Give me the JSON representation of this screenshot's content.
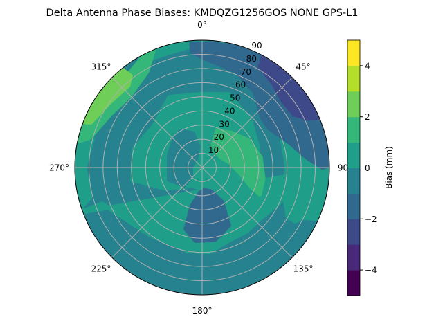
{
  "chart_data": {
    "type": "polar-contour",
    "title": "Delta Antenna Phase Biases: KMDQZG1256GOS   NONE GPS-L1",
    "theta_direction": "clockwise",
    "theta_zero": "top",
    "theta_ticks": [
      "0°",
      "45°",
      "90°",
      "135°",
      "180°",
      "225°",
      "270°",
      "315°"
    ],
    "r_ticks": [
      "10",
      "20",
      "30",
      "40",
      "50",
      "60",
      "70",
      "80",
      "90"
    ],
    "r_range": [
      0,
      90
    ],
    "grid": true,
    "colorbar": {
      "label": "Bias (mm)",
      "range": [
        -5,
        5
      ],
      "ticks": [
        "4",
        "2",
        "0",
        "−2",
        "−4"
      ],
      "levels": [
        -5,
        -4,
        -3,
        -2,
        -1,
        0,
        1,
        2,
        3,
        4,
        5
      ],
      "colors": [
        "#440154",
        "#482878",
        "#3e4989",
        "#31688e",
        "#26828e",
        "#1f9e89",
        "#35b779",
        "#6ece58",
        "#b5de2b",
        "#fde725"
      ],
      "colormap": "viridis"
    },
    "background_level": [
      -1,
      0
    ],
    "regions": [
      {
        "level": [
          0,
          1
        ],
        "points": [
          [
            0,
            52
          ],
          [
            20,
            55
          ],
          [
            45,
            48
          ],
          [
            70,
            42
          ],
          [
            90,
            35
          ],
          [
            110,
            40
          ],
          [
            130,
            30
          ],
          [
            150,
            25
          ],
          [
            180,
            15
          ],
          [
            210,
            15
          ],
          [
            240,
            30
          ],
          [
            260,
            50
          ],
          [
            285,
            50
          ],
          [
            310,
            45
          ],
          [
            335,
            55
          ]
        ]
      },
      {
        "level": [
          0,
          1
        ],
        "points": [
          [
            250,
            90
          ],
          [
            250,
            75
          ],
          [
            235,
            65
          ],
          [
            215,
            60
          ],
          [
            200,
            58
          ],
          [
            190,
            60
          ],
          [
            175,
            60
          ],
          [
            160,
            55
          ],
          [
            145,
            55
          ],
          [
            130,
            55
          ],
          [
            115,
            60
          ],
          [
            100,
            65
          ],
          [
            90,
            70
          ],
          [
            90,
            90
          ]
        ]
      },
      {
        "level": [
          0,
          1
        ],
        "points": [
          [
            45,
            70
          ],
          [
            55,
            65
          ],
          [
            70,
            60
          ],
          [
            90,
            60
          ],
          [
            110,
            62
          ],
          [
            120,
            70
          ],
          [
            120,
            90
          ],
          [
            75,
            90
          ],
          [
            75,
            80
          ],
          [
            60,
            75
          ]
        ]
      },
      {
        "level": [
          0,
          1
        ],
        "points": [
          [
            250,
            90
          ],
          [
            255,
            82
          ],
          [
            270,
            83
          ],
          [
            285,
            80
          ],
          [
            290,
            90
          ]
        ]
      },
      {
        "level": [
          0,
          1
        ],
        "points": [
          [
            330,
            90
          ],
          [
            335,
            85
          ],
          [
            350,
            85
          ],
          [
            0,
            88
          ],
          [
            5,
            90
          ]
        ]
      },
      {
        "level": [
          -1,
          0
        ],
        "points": [
          [
            330,
            30
          ],
          [
            345,
            25
          ],
          [
            350,
            15
          ],
          [
            330,
            8
          ],
          [
            270,
            8
          ],
          [
            230,
            10
          ],
          [
            225,
            18
          ],
          [
            250,
            25
          ],
          [
            290,
            25
          ],
          [
            315,
            28
          ]
        ]
      },
      {
        "level": [
          -1,
          0
        ],
        "points": [
          [
            115,
            90
          ],
          [
            118,
            82
          ],
          [
            125,
            75
          ],
          [
            135,
            78
          ],
          [
            145,
            85
          ],
          [
            150,
            90
          ]
        ]
      },
      {
        "level": [
          -2,
          -1
        ],
        "points": [
          [
            175,
            16
          ],
          [
            160,
            18
          ],
          [
            150,
            28
          ],
          [
            155,
            45
          ],
          [
            170,
            52
          ],
          [
            185,
            52
          ],
          [
            195,
            45
          ],
          [
            195,
            28
          ],
          [
            185,
            18
          ]
        ]
      },
      {
        "level": [
          -2,
          -1
        ],
        "points": [
          [
            355,
            82
          ],
          [
            0,
            78
          ],
          [
            20,
            72
          ],
          [
            35,
            65
          ],
          [
            50,
            55
          ],
          [
            60,
            55
          ],
          [
            75,
            65
          ],
          [
            85,
            75
          ],
          [
            90,
            85
          ],
          [
            88,
            90
          ],
          [
            60,
            90
          ],
          [
            30,
            90
          ],
          [
            15,
            88
          ],
          [
            5,
            88
          ],
          [
            355,
            88
          ]
        ]
      },
      {
        "level": [
          -3,
          -2
        ],
        "points": [
          [
            28,
            90
          ],
          [
            30,
            82
          ],
          [
            40,
            78
          ],
          [
            50,
            74
          ],
          [
            60,
            75
          ],
          [
            65,
            82
          ],
          [
            68,
            90
          ]
        ]
      },
      {
        "level": [
          1,
          2
        ],
        "points": [
          [
            25,
            18
          ],
          [
            22,
            28
          ],
          [
            40,
            32
          ],
          [
            60,
            38
          ],
          [
            80,
            42
          ],
          [
            100,
            44
          ],
          [
            115,
            45
          ],
          [
            112,
            38
          ],
          [
            100,
            28
          ],
          [
            80,
            20
          ],
          [
            60,
            15
          ],
          [
            40,
            15
          ]
        ]
      },
      {
        "level": [
          1,
          2
        ],
        "points": [
          [
            280,
            90
          ],
          [
            285,
            82
          ],
          [
            300,
            75
          ],
          [
            315,
            72
          ],
          [
            330,
            78
          ],
          [
            335,
            85
          ],
          [
            340,
            90
          ]
        ]
      },
      {
        "level": [
          2,
          3
        ],
        "points": [
          [
            290,
            90
          ],
          [
            292,
            85
          ],
          [
            305,
            80
          ],
          [
            318,
            78
          ],
          [
            322,
            82
          ],
          [
            320,
            90
          ]
        ]
      }
    ]
  }
}
